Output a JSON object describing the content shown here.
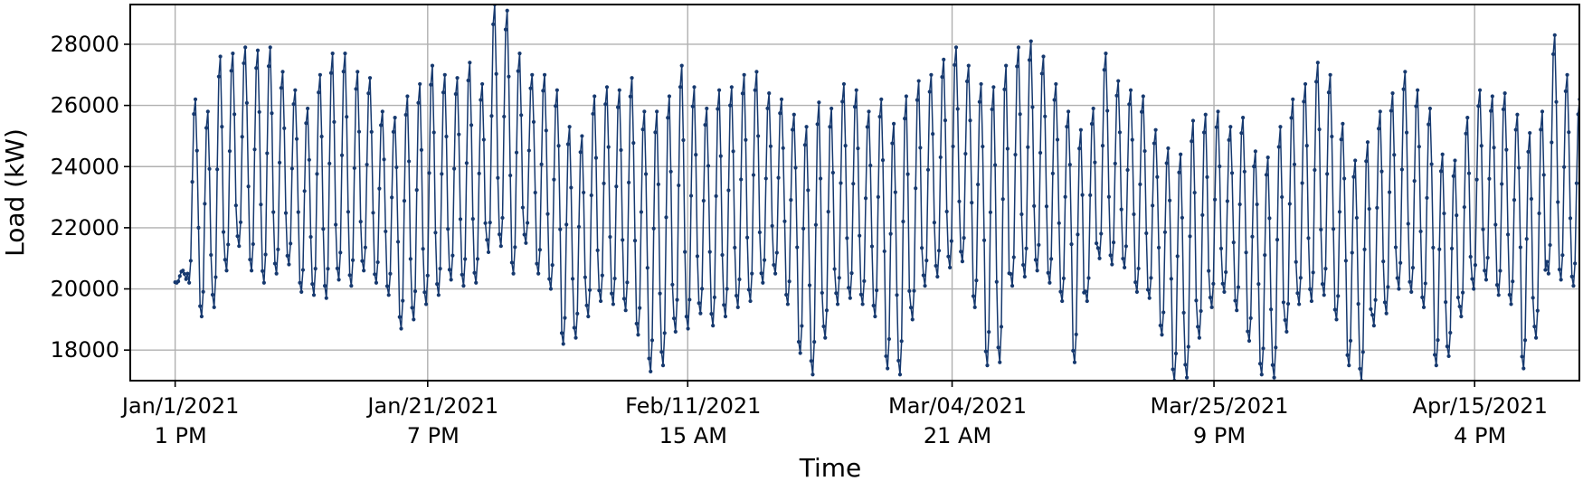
{
  "chart_data": {
    "type": "line",
    "title": "",
    "xlabel": "Time",
    "ylabel": "Load (kW)",
    "ylim": [
      17000,
      29300
    ],
    "grid": true,
    "legend": "none",
    "x_ticks": [
      {
        "date": "Jan/1/2021",
        "time": "1 PM",
        "day": 0
      },
      {
        "date": "Jan/21/2021",
        "time": "7 PM",
        "day": 20.25
      },
      {
        "date": "Feb/11/2021",
        "time": "15 AM",
        "day": 41.1
      },
      {
        "date": "Mar/04/2021",
        "time": "21 AM",
        "day": 62.3
      },
      {
        "date": "Mar/25/2021",
        "time": "9 PM",
        "day": 83.3
      },
      {
        "date": "Apr/15/2021",
        "time": "4 PM",
        "day": 104.2
      }
    ],
    "y_ticks": [
      18000,
      20000,
      22000,
      24000,
      26000,
      28000
    ],
    "xlim_days": [
      -3.6,
      112.6
    ],
    "resolution": "3-hourly",
    "series": [
      {
        "color": "#16396f",
        "daily_profile": [
          [
            0,
            20200,
            20600
          ],
          [
            1,
            20200,
            26200
          ],
          [
            2,
            19100,
            25800
          ],
          [
            3,
            19400,
            27600
          ],
          [
            4,
            20600,
            27700
          ],
          [
            5,
            21400,
            27900
          ],
          [
            6,
            20600,
            27800
          ],
          [
            7,
            20200,
            27900
          ],
          [
            8,
            20500,
            27100
          ],
          [
            9,
            20800,
            26500
          ],
          [
            10,
            19900,
            25900
          ],
          [
            11,
            19800,
            27000
          ],
          [
            12,
            19700,
            27700
          ],
          [
            13,
            20300,
            27700
          ],
          [
            14,
            20100,
            27100
          ],
          [
            15,
            20600,
            26900
          ],
          [
            16,
            20200,
            25800
          ],
          [
            17,
            19800,
            25600
          ],
          [
            18,
            18700,
            26300
          ],
          [
            19,
            19000,
            26700
          ],
          [
            20,
            19500,
            27300
          ],
          [
            21,
            19800,
            27000
          ],
          [
            22,
            20300,
            26900
          ],
          [
            23,
            20100,
            27400
          ],
          [
            24,
            20200,
            26700
          ],
          [
            25,
            21200,
            29300
          ],
          [
            26,
            21400,
            29100
          ],
          [
            27,
            20500,
            27700
          ],
          [
            28,
            21500,
            27000
          ],
          [
            29,
            20500,
            27000
          ],
          [
            30,
            20000,
            26500
          ],
          [
            31,
            18200,
            25300
          ],
          [
            32,
            18400,
            25000
          ],
          [
            33,
            19100,
            26300
          ],
          [
            34,
            19600,
            26600
          ],
          [
            35,
            19500,
            26500
          ],
          [
            36,
            19300,
            26900
          ],
          [
            37,
            18500,
            25800
          ],
          [
            38,
            17300,
            25800
          ],
          [
            39,
            17500,
            26300
          ],
          [
            40,
            18600,
            27300
          ],
          [
            41,
            18700,
            26600
          ],
          [
            42,
            19200,
            25900
          ],
          [
            43,
            18800,
            26500
          ],
          [
            44,
            19100,
            26600
          ],
          [
            45,
            19400,
            27000
          ],
          [
            46,
            19600,
            27100
          ],
          [
            47,
            20200,
            26400
          ],
          [
            48,
            20500,
            26200
          ],
          [
            49,
            19500,
            25700
          ],
          [
            50,
            17900,
            25300
          ],
          [
            51,
            17200,
            26100
          ],
          [
            52,
            18400,
            25900
          ],
          [
            53,
            19500,
            26700
          ],
          [
            54,
            19700,
            26500
          ],
          [
            55,
            19500,
            25800
          ],
          [
            56,
            19100,
            26200
          ],
          [
            57,
            17400,
            25400
          ],
          [
            58,
            17200,
            26300
          ],
          [
            59,
            19000,
            26800
          ],
          [
            60,
            20100,
            27000
          ],
          [
            61,
            20400,
            27500
          ],
          [
            62,
            20700,
            27900
          ],
          [
            63,
            20900,
            27300
          ],
          [
            64,
            19400,
            26700
          ],
          [
            65,
            17500,
            26600
          ],
          [
            66,
            17600,
            27300
          ],
          [
            67,
            20100,
            27900
          ],
          [
            68,
            20400,
            28100
          ],
          [
            69,
            20600,
            27600
          ],
          [
            70,
            20200,
            26700
          ],
          [
            71,
            19600,
            25800
          ],
          [
            72,
            17600,
            25200
          ],
          [
            73,
            19600,
            25900
          ],
          [
            74,
            21000,
            27700
          ],
          [
            75,
            20800,
            26800
          ],
          [
            76,
            20700,
            26500
          ],
          [
            77,
            19900,
            26300
          ],
          [
            78,
            19700,
            25200
          ],
          [
            79,
            18500,
            24600
          ],
          [
            80,
            17000,
            24400
          ],
          [
            81,
            17100,
            25500
          ],
          [
            82,
            18400,
            25700
          ],
          [
            83,
            19400,
            25800
          ],
          [
            84,
            19900,
            25300
          ],
          [
            85,
            19300,
            25600
          ],
          [
            86,
            18300,
            24500
          ],
          [
            87,
            17200,
            24300
          ],
          [
            88,
            17100,
            25300
          ],
          [
            89,
            18600,
            26200
          ],
          [
            90,
            19500,
            26700
          ],
          [
            91,
            19600,
            27400
          ],
          [
            92,
            19800,
            27000
          ],
          [
            93,
            19000,
            25400
          ],
          [
            94,
            17500,
            24200
          ],
          [
            95,
            17000,
            24800
          ],
          [
            96,
            18800,
            25800
          ],
          [
            97,
            19200,
            26400
          ],
          [
            98,
            20000,
            27100
          ],
          [
            99,
            19900,
            26500
          ],
          [
            100,
            19400,
            25900
          ],
          [
            101,
            17500,
            24400
          ],
          [
            102,
            17800,
            24200
          ],
          [
            103,
            19100,
            25600
          ],
          [
            104,
            20000,
            26500
          ],
          [
            105,
            20300,
            26300
          ],
          [
            106,
            19800,
            26400
          ],
          [
            107,
            19500,
            25700
          ],
          [
            108,
            17400,
            25100
          ],
          [
            109,
            18400,
            25800
          ],
          [
            110,
            20500,
            28300
          ],
          [
            111,
            20300,
            27000
          ],
          [
            112,
            20100,
            26200
          ]
        ]
      }
    ]
  }
}
